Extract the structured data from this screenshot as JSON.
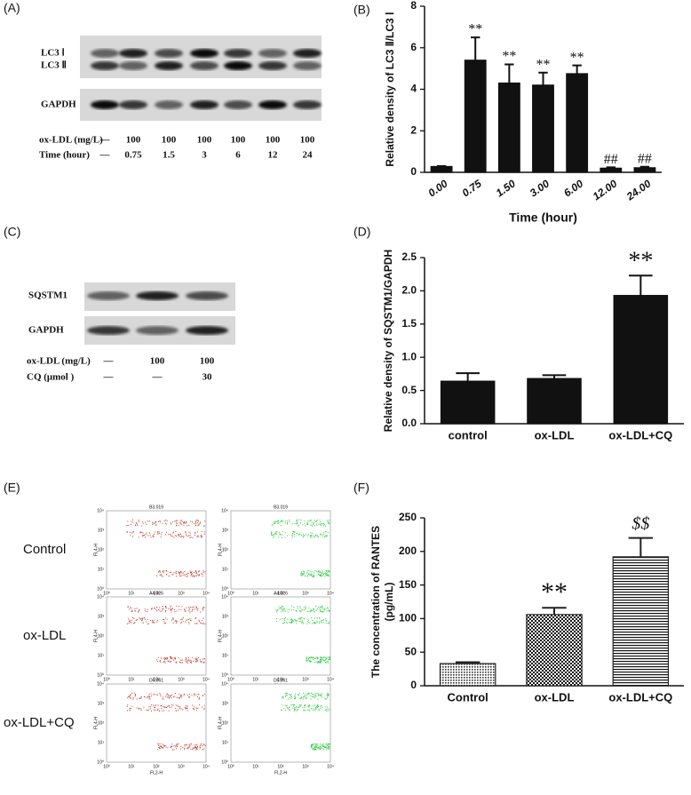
{
  "blot_A": {
    "label": "(A)",
    "bands": [
      "LC3 Ⅰ",
      "LC3 Ⅱ",
      "GAPDH"
    ],
    "rows": [
      {
        "name": "ox-LDL (mg/L)",
        "cells": [
          "—",
          "100",
          "100",
          "100",
          "100",
          "100",
          "100"
        ]
      },
      {
        "name": "Time (hour)",
        "cells": [
          "—",
          "0.75",
          "1.5",
          "3",
          "6",
          "12",
          "24"
        ]
      }
    ]
  },
  "blot_C": {
    "label": "(C)",
    "bands": [
      "SQSTM1",
      "GAPDH"
    ],
    "rows": [
      {
        "name": "ox-LDL (mg/L)",
        "cells": [
          "—",
          "100",
          "100"
        ]
      },
      {
        "name": "CQ (μmol )",
        "cells": [
          "—",
          "—",
          "30"
        ]
      }
    ]
  },
  "flow_E": {
    "label": "(E)",
    "groups": [
      "Control",
      "ox-LDL",
      "ox-LDL+CQ"
    ],
    "samples": [
      "B3.019",
      "A4.026",
      "D6.061"
    ],
    "x_axis": "FL2-H",
    "y_axis": "FL4-H",
    "ticks": [
      "10⁰",
      "10¹",
      "10²",
      "10³",
      "10⁴"
    ]
  },
  "chart_data": [
    {
      "type": "bar",
      "panel": "(B)",
      "ylabel": [
        "Relative density of LC3 Ⅱ/LC3 Ⅰ"
      ],
      "xlabel": "Time (hour)",
      "categories": [
        "0.00",
        "0.75",
        "1.50",
        "3.00",
        "6.00",
        "12.00",
        "24.00"
      ],
      "values": [
        0.28,
        5.4,
        4.3,
        4.2,
        4.75,
        0.2,
        0.22
      ],
      "errors": [
        0.02,
        1.1,
        0.9,
        0.6,
        0.4,
        0.04,
        0.05
      ],
      "annotations": [
        null,
        "**",
        "**",
        "**",
        "**",
        "##",
        "##"
      ],
      "color": "#111111",
      "ylim": [
        0,
        8
      ],
      "yticks": [
        0,
        2,
        4,
        6,
        8
      ]
    },
    {
      "type": "bar",
      "panel": "(D)",
      "ylabel": [
        "Relative density of SQSTM1/GAPDH"
      ],
      "categories": [
        "control",
        "ox-LDL",
        "ox-LDL+CQ"
      ],
      "values": [
        0.64,
        0.68,
        1.93
      ],
      "errors": [
        0.12,
        0.05,
        0.3
      ],
      "annotations": [
        null,
        null,
        "**"
      ],
      "color": "#111111",
      "ylim": [
        0,
        2.5
      ],
      "yticks": [
        {
          "value": 0,
          "label": "0.0"
        },
        {
          "value": 0.5,
          "label": "0.5"
        },
        {
          "value": 1,
          "label": "1.0"
        },
        {
          "value": 1.5,
          "label": "1.5"
        },
        {
          "value": 2,
          "label": "2.0"
        },
        {
          "value": 2.5,
          "label": "2.5"
        }
      ]
    },
    {
      "type": "bar",
      "panel": "(F)",
      "ylabel": [
        "The concentration of RANTES",
        "(pg/mL)"
      ],
      "categories": [
        "Control",
        "ox-LDL",
        "ox-LDL+CQ"
      ],
      "values": [
        33,
        106,
        192
      ],
      "errors": [
        2,
        10,
        28
      ],
      "annotations": [
        null,
        "**",
        "$$"
      ],
      "color": "#222222",
      "patterns": [
        "dots",
        "checker",
        "hlines"
      ],
      "ylim": [
        0,
        250
      ],
      "yticks": [
        0,
        50,
        100,
        150,
        200,
        250
      ]
    }
  ]
}
